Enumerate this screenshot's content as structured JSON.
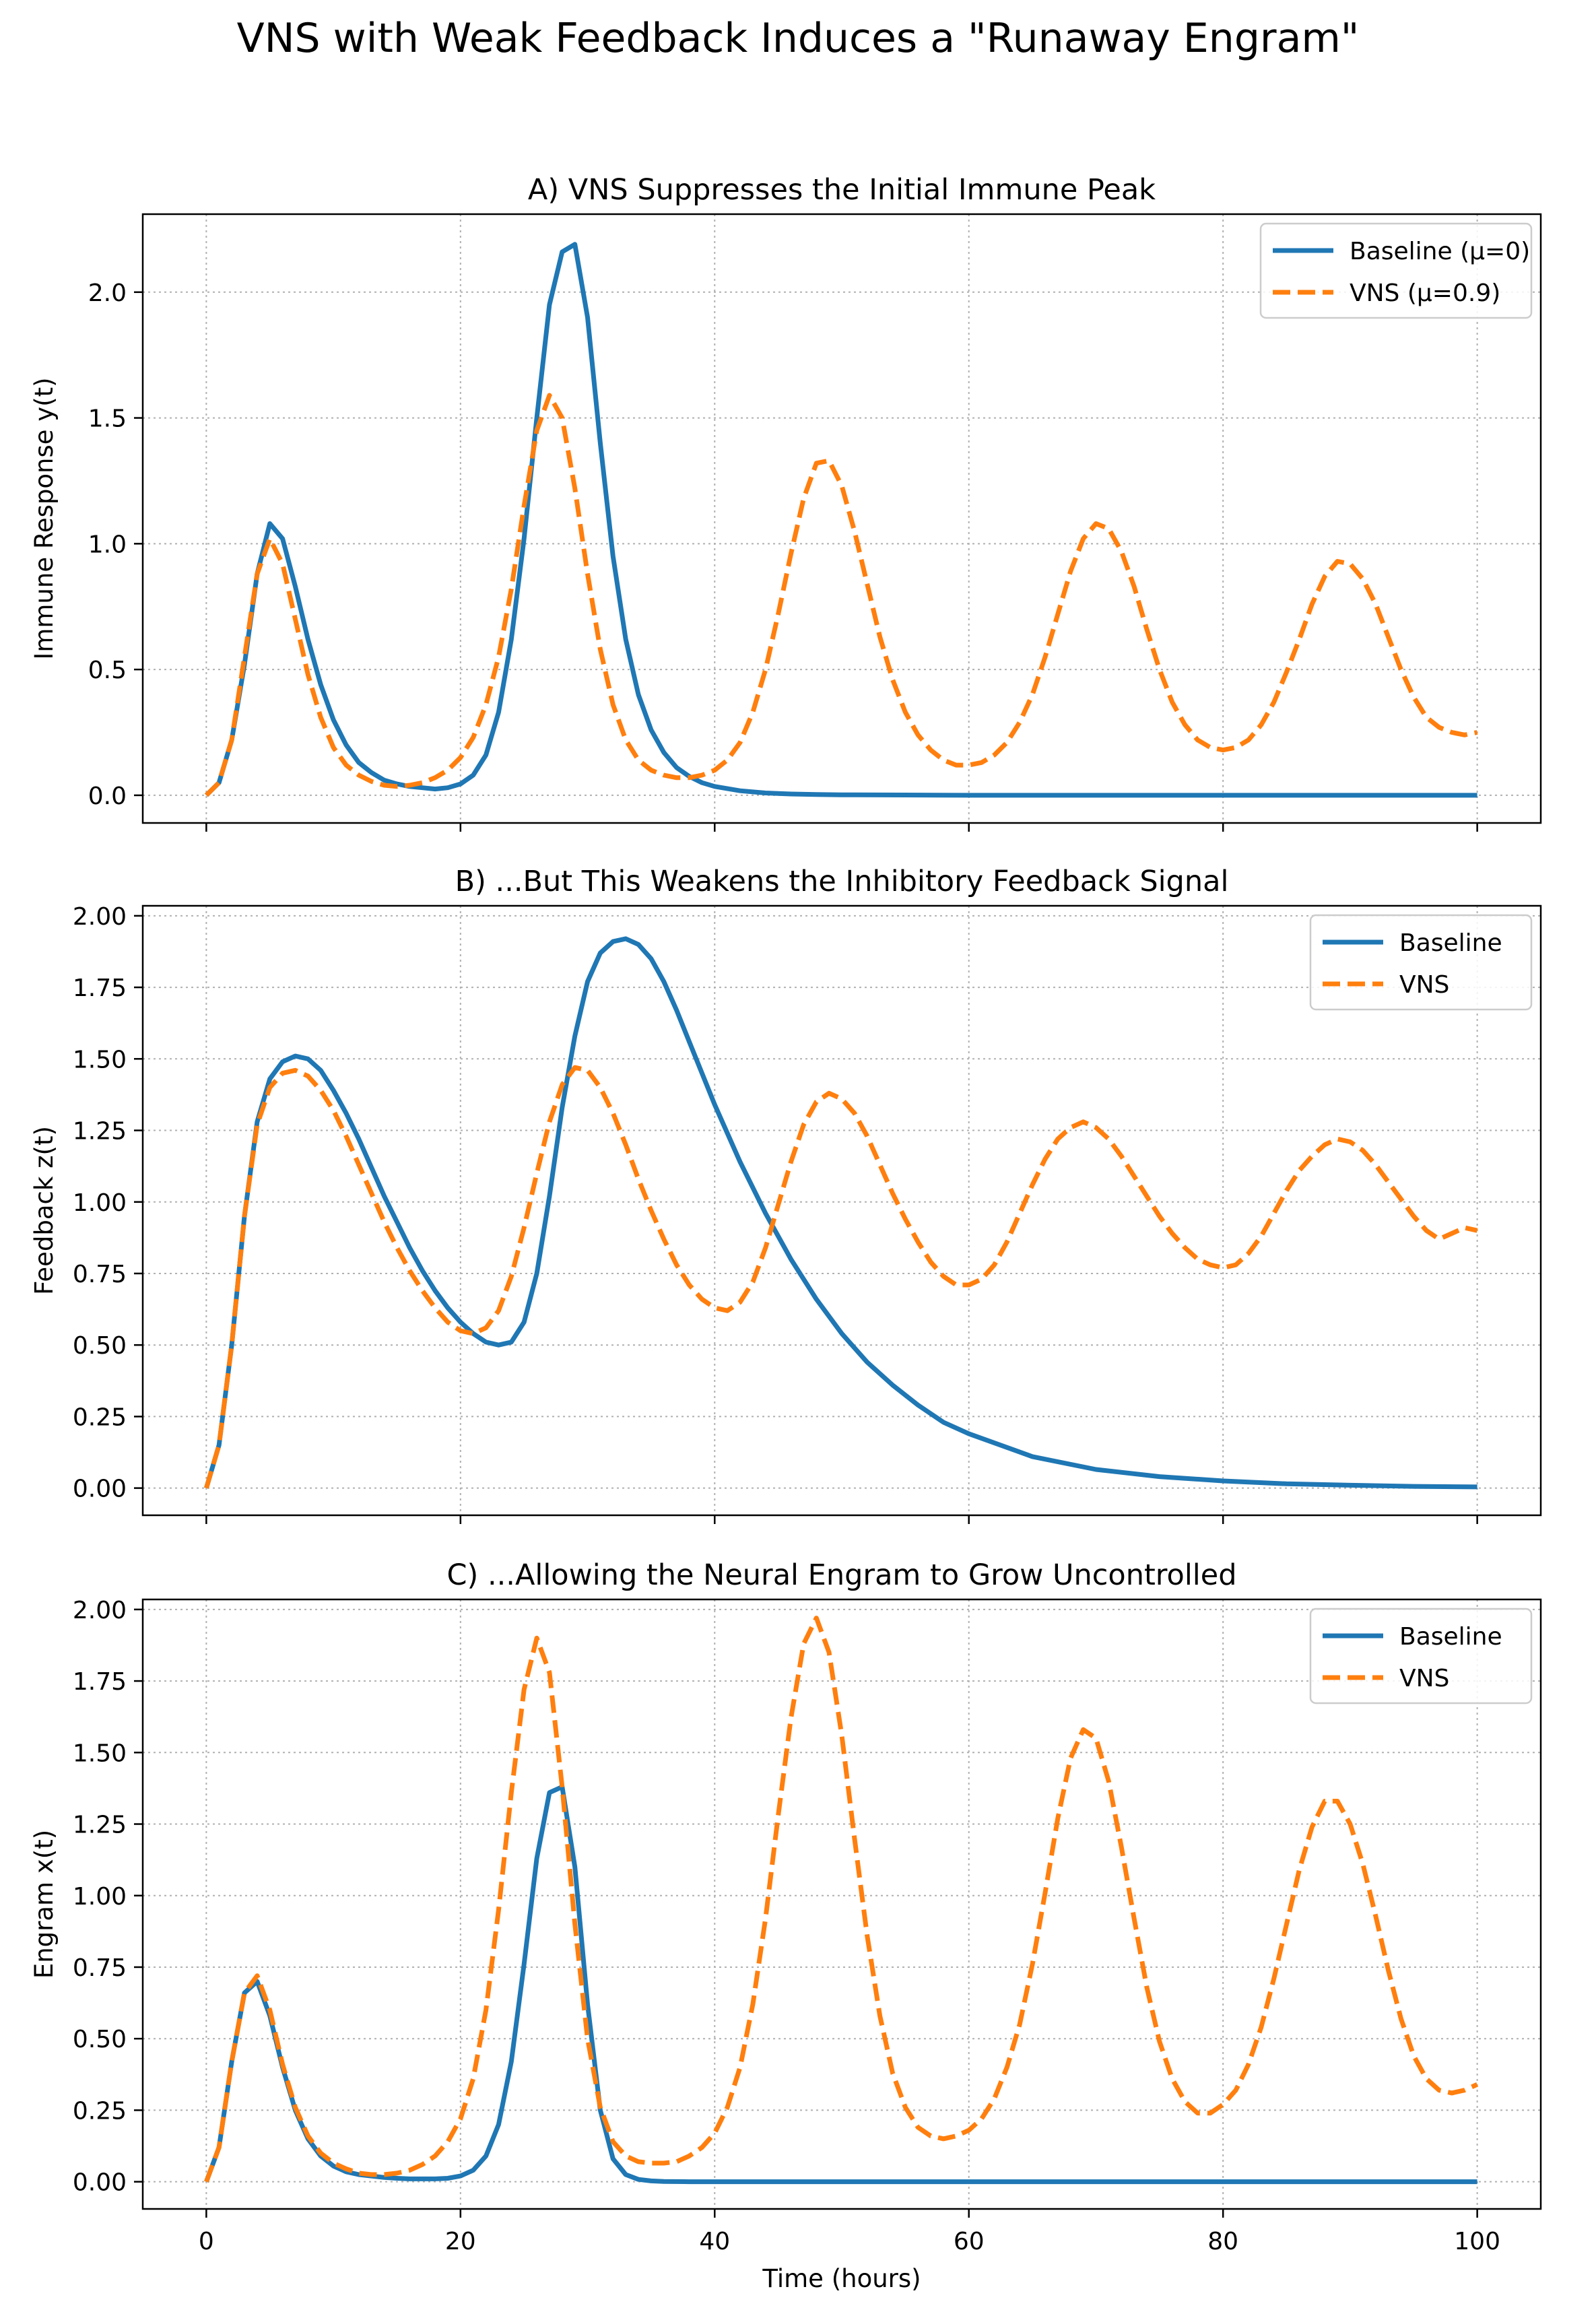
{
  "figure": {
    "suptitle": "VNS with Weak Feedback Induces a \"Runaway Engram\""
  },
  "colors": {
    "baseline": "#1f77b4",
    "vns": "#ff7f0e",
    "grid": "#b0b0b0"
  },
  "chart_data": [
    {
      "type": "line",
      "title": "A) VNS Suppresses the Initial Immune Peak",
      "xlabel": "",
      "ylabel": "Immune Response y(t)",
      "xlim": [
        -5,
        105
      ],
      "ylim": [
        -0.11,
        2.31
      ],
      "xticks": [
        0,
        20,
        40,
        60,
        80,
        100
      ],
      "xtick_labels": [
        "",
        "",
        "",
        "",
        "",
        ""
      ],
      "yticks": [
        0.0,
        0.5,
        1.0,
        1.5,
        2.0
      ],
      "ytick_labels": [
        "0.0",
        "0.5",
        "1.0",
        "1.5",
        "2.0"
      ],
      "grid": true,
      "legend": "top-right",
      "series": [
        {
          "name": "Baseline (μ=0)",
          "style": "solid",
          "x": [
            0,
            1,
            2,
            3,
            4,
            5,
            6,
            7,
            8,
            9,
            10,
            11,
            12,
            13,
            14,
            15,
            16,
            17,
            18,
            19,
            20,
            21,
            22,
            23,
            24,
            25,
            26,
            27,
            28,
            29,
            30,
            31,
            32,
            33,
            34,
            35,
            36,
            37,
            38,
            39,
            40,
            42,
            44,
            46,
            48,
            50,
            55,
            60,
            70,
            80,
            90,
            100
          ],
          "y": [
            0.0,
            0.05,
            0.22,
            0.52,
            0.88,
            1.08,
            1.02,
            0.83,
            0.62,
            0.44,
            0.3,
            0.2,
            0.13,
            0.09,
            0.06,
            0.045,
            0.035,
            0.03,
            0.025,
            0.03,
            0.045,
            0.08,
            0.16,
            0.33,
            0.62,
            1.02,
            1.5,
            1.95,
            2.16,
            2.19,
            1.9,
            1.4,
            0.95,
            0.62,
            0.4,
            0.26,
            0.17,
            0.11,
            0.075,
            0.05,
            0.035,
            0.018,
            0.009,
            0.005,
            0.003,
            0.002,
            0.001,
            0.0,
            0.0,
            0.0,
            0.0,
            0.0
          ]
        },
        {
          "name": "VNS (μ=0.9)",
          "style": "dashed",
          "x": [
            0,
            1,
            2,
            3,
            4,
            5,
            6,
            7,
            8,
            9,
            10,
            11,
            12,
            13,
            14,
            15,
            16,
            17,
            18,
            19,
            20,
            21,
            22,
            23,
            24,
            25,
            26,
            27,
            28,
            29,
            30,
            31,
            32,
            33,
            34,
            35,
            36,
            37,
            38,
            39,
            40,
            41,
            42,
            43,
            44,
            45,
            46,
            47,
            48,
            49,
            50,
            51,
            52,
            53,
            54,
            55,
            56,
            57,
            58,
            59,
            60,
            61,
            62,
            63,
            64,
            65,
            66,
            67,
            68,
            69,
            70,
            71,
            72,
            73,
            74,
            75,
            76,
            77,
            78,
            79,
            80,
            81,
            82,
            83,
            84,
            85,
            86,
            87,
            88,
            89,
            90,
            91,
            92,
            93,
            94,
            95,
            96,
            97,
            98,
            99,
            100
          ],
          "y": [
            0.0,
            0.05,
            0.22,
            0.55,
            0.88,
            1.02,
            0.92,
            0.7,
            0.48,
            0.31,
            0.19,
            0.12,
            0.08,
            0.055,
            0.04,
            0.035,
            0.04,
            0.05,
            0.07,
            0.1,
            0.15,
            0.23,
            0.36,
            0.55,
            0.82,
            1.15,
            1.45,
            1.59,
            1.5,
            1.22,
            0.88,
            0.58,
            0.36,
            0.22,
            0.14,
            0.1,
            0.08,
            0.07,
            0.07,
            0.08,
            0.1,
            0.14,
            0.21,
            0.33,
            0.5,
            0.72,
            0.96,
            1.18,
            1.32,
            1.33,
            1.23,
            1.05,
            0.84,
            0.63,
            0.46,
            0.33,
            0.24,
            0.18,
            0.14,
            0.12,
            0.12,
            0.13,
            0.16,
            0.21,
            0.29,
            0.4,
            0.55,
            0.72,
            0.89,
            1.02,
            1.08,
            1.06,
            0.97,
            0.83,
            0.66,
            0.5,
            0.37,
            0.28,
            0.22,
            0.19,
            0.18,
            0.19,
            0.22,
            0.28,
            0.37,
            0.49,
            0.62,
            0.76,
            0.87,
            0.93,
            0.92,
            0.86,
            0.76,
            0.63,
            0.5,
            0.39,
            0.31,
            0.27,
            0.25,
            0.24,
            0.25
          ]
        }
      ]
    },
    {
      "type": "line",
      "title": "B) ...But This Weakens the Inhibitory Feedback Signal",
      "xlabel": "",
      "ylabel": "Feedback z(t)",
      "xlim": [
        -5,
        105
      ],
      "ylim": [
        -0.095,
        2.035
      ],
      "xticks": [
        0,
        20,
        40,
        60,
        80,
        100
      ],
      "xtick_labels": [
        "",
        "",
        "",
        "",
        "",
        ""
      ],
      "yticks": [
        0.0,
        0.25,
        0.5,
        0.75,
        1.0,
        1.25,
        1.5,
        1.75,
        2.0
      ],
      "ytick_labels": [
        "0.00",
        "0.25",
        "0.50",
        "0.75",
        "1.00",
        "1.25",
        "1.50",
        "1.75",
        "2.00"
      ],
      "grid": true,
      "legend": "top-right",
      "series": [
        {
          "name": "Baseline",
          "style": "solid",
          "x": [
            0,
            1,
            2,
            3,
            4,
            5,
            6,
            7,
            8,
            9,
            10,
            11,
            12,
            13,
            14,
            15,
            16,
            17,
            18,
            19,
            20,
            21,
            22,
            23,
            24,
            25,
            26,
            27,
            28,
            29,
            30,
            31,
            32,
            33,
            34,
            35,
            36,
            37,
            38,
            39,
            40,
            42,
            44,
            46,
            48,
            50,
            52,
            54,
            56,
            58,
            60,
            65,
            70,
            75,
            80,
            85,
            90,
            95,
            100
          ],
          "y": [
            0.0,
            0.15,
            0.5,
            0.95,
            1.28,
            1.43,
            1.49,
            1.51,
            1.5,
            1.46,
            1.39,
            1.31,
            1.22,
            1.12,
            1.02,
            0.93,
            0.84,
            0.76,
            0.69,
            0.63,
            0.58,
            0.54,
            0.51,
            0.5,
            0.51,
            0.58,
            0.75,
            1.02,
            1.33,
            1.58,
            1.77,
            1.87,
            1.91,
            1.92,
            1.9,
            1.85,
            1.77,
            1.67,
            1.56,
            1.45,
            1.34,
            1.14,
            0.96,
            0.8,
            0.66,
            0.54,
            0.44,
            0.36,
            0.29,
            0.23,
            0.19,
            0.11,
            0.065,
            0.04,
            0.025,
            0.015,
            0.01,
            0.006,
            0.004
          ]
        },
        {
          "name": "VNS",
          "style": "dashed",
          "x": [
            0,
            1,
            2,
            3,
            4,
            5,
            6,
            7,
            8,
            9,
            10,
            11,
            12,
            13,
            14,
            15,
            16,
            17,
            18,
            19,
            20,
            21,
            22,
            23,
            24,
            25,
            26,
            27,
            28,
            29,
            30,
            31,
            32,
            33,
            34,
            35,
            36,
            37,
            38,
            39,
            40,
            41,
            42,
            43,
            44,
            45,
            46,
            47,
            48,
            49,
            50,
            51,
            52,
            53,
            54,
            55,
            56,
            57,
            58,
            59,
            60,
            61,
            62,
            63,
            64,
            65,
            66,
            67,
            68,
            69,
            70,
            71,
            72,
            73,
            74,
            75,
            76,
            77,
            78,
            79,
            80,
            81,
            82,
            83,
            84,
            85,
            86,
            87,
            88,
            89,
            90,
            91,
            92,
            93,
            94,
            95,
            96,
            97,
            98,
            99,
            100
          ],
          "y": [
            0.0,
            0.15,
            0.5,
            0.95,
            1.27,
            1.4,
            1.45,
            1.46,
            1.44,
            1.39,
            1.32,
            1.23,
            1.13,
            1.03,
            0.93,
            0.84,
            0.76,
            0.69,
            0.63,
            0.58,
            0.55,
            0.54,
            0.56,
            0.62,
            0.74,
            0.91,
            1.1,
            1.28,
            1.41,
            1.47,
            1.46,
            1.4,
            1.31,
            1.2,
            1.08,
            0.97,
            0.87,
            0.78,
            0.71,
            0.66,
            0.63,
            0.62,
            0.65,
            0.72,
            0.84,
            0.99,
            1.14,
            1.27,
            1.35,
            1.38,
            1.36,
            1.31,
            1.23,
            1.13,
            1.03,
            0.94,
            0.86,
            0.79,
            0.74,
            0.71,
            0.71,
            0.73,
            0.78,
            0.86,
            0.96,
            1.06,
            1.15,
            1.22,
            1.26,
            1.28,
            1.26,
            1.22,
            1.16,
            1.09,
            1.02,
            0.95,
            0.89,
            0.84,
            0.8,
            0.78,
            0.77,
            0.78,
            0.82,
            0.88,
            0.96,
            1.04,
            1.11,
            1.16,
            1.2,
            1.22,
            1.21,
            1.18,
            1.13,
            1.07,
            1.01,
            0.95,
            0.9,
            0.87,
            0.89,
            0.91,
            0.9
          ]
        }
      ]
    },
    {
      "type": "line",
      "title": "C) ...Allowing the Neural Engram to Grow Uncontrolled",
      "xlabel": "Time (hours)",
      "ylabel": "Engram x(t)",
      "xlim": [
        -5,
        105
      ],
      "ylim": [
        -0.095,
        2.035
      ],
      "xticks": [
        0,
        20,
        40,
        60,
        80,
        100
      ],
      "xtick_labels": [
        "0",
        "20",
        "40",
        "60",
        "80",
        "100"
      ],
      "yticks": [
        0.0,
        0.25,
        0.5,
        0.75,
        1.0,
        1.25,
        1.5,
        1.75,
        2.0
      ],
      "ytick_labels": [
        "0.00",
        "0.25",
        "0.50",
        "0.75",
        "1.00",
        "1.25",
        "1.50",
        "1.75",
        "2.00"
      ],
      "grid": true,
      "legend": "top-right",
      "series": [
        {
          "name": "Baseline",
          "style": "solid",
          "x": [
            0,
            1,
            2,
            3,
            4,
            5,
            6,
            7,
            8,
            9,
            10,
            11,
            12,
            13,
            14,
            15,
            16,
            17,
            18,
            19,
            20,
            21,
            22,
            23,
            24,
            25,
            26,
            27,
            28,
            29,
            30,
            31,
            32,
            33,
            34,
            35,
            36,
            38,
            40,
            45,
            50,
            60,
            70,
            80,
            90,
            100
          ],
          "y": [
            0.0,
            0.12,
            0.42,
            0.66,
            0.7,
            0.58,
            0.4,
            0.25,
            0.15,
            0.09,
            0.055,
            0.035,
            0.025,
            0.02,
            0.015,
            0.012,
            0.01,
            0.01,
            0.01,
            0.012,
            0.02,
            0.04,
            0.09,
            0.2,
            0.42,
            0.76,
            1.13,
            1.36,
            1.38,
            1.1,
            0.62,
            0.25,
            0.08,
            0.025,
            0.008,
            0.003,
            0.001,
            0.0,
            0.0,
            0.0,
            0.0,
            0.0,
            0.0,
            0.0,
            0.0,
            0.0
          ]
        },
        {
          "name": "VNS",
          "style": "dashed",
          "x": [
            0,
            1,
            2,
            3,
            4,
            5,
            6,
            7,
            8,
            9,
            10,
            11,
            12,
            13,
            14,
            15,
            16,
            17,
            18,
            19,
            20,
            21,
            22,
            23,
            24,
            25,
            26,
            27,
            28,
            29,
            30,
            31,
            32,
            33,
            34,
            35,
            36,
            37,
            38,
            39,
            40,
            41,
            42,
            43,
            44,
            45,
            46,
            47,
            48,
            49,
            50,
            51,
            52,
            53,
            54,
            55,
            56,
            57,
            58,
            59,
            60,
            61,
            62,
            63,
            64,
            65,
            66,
            67,
            68,
            69,
            70,
            71,
            72,
            73,
            74,
            75,
            76,
            77,
            78,
            79,
            80,
            81,
            82,
            83,
            84,
            85,
            86,
            87,
            88,
            89,
            90,
            91,
            92,
            93,
            94,
            95,
            96,
            97,
            98,
            99,
            100
          ],
          "y": [
            0.0,
            0.12,
            0.42,
            0.66,
            0.72,
            0.6,
            0.41,
            0.26,
            0.16,
            0.1,
            0.065,
            0.045,
            0.03,
            0.025,
            0.025,
            0.03,
            0.04,
            0.06,
            0.09,
            0.14,
            0.22,
            0.36,
            0.6,
            0.95,
            1.36,
            1.72,
            1.9,
            1.78,
            1.38,
            0.9,
            0.5,
            0.26,
            0.14,
            0.09,
            0.07,
            0.065,
            0.065,
            0.07,
            0.09,
            0.12,
            0.17,
            0.26,
            0.4,
            0.62,
            0.92,
            1.28,
            1.62,
            1.88,
            1.97,
            1.85,
            1.56,
            1.2,
            0.86,
            0.58,
            0.38,
            0.26,
            0.19,
            0.16,
            0.15,
            0.16,
            0.18,
            0.22,
            0.29,
            0.4,
            0.55,
            0.76,
            1.01,
            1.27,
            1.48,
            1.58,
            1.55,
            1.4,
            1.17,
            0.92,
            0.68,
            0.49,
            0.36,
            0.28,
            0.24,
            0.24,
            0.27,
            0.32,
            0.41,
            0.54,
            0.71,
            0.9,
            1.09,
            1.24,
            1.33,
            1.33,
            1.25,
            1.11,
            0.93,
            0.74,
            0.57,
            0.44,
            0.36,
            0.32,
            0.31,
            0.32,
            0.34
          ]
        }
      ]
    }
  ]
}
